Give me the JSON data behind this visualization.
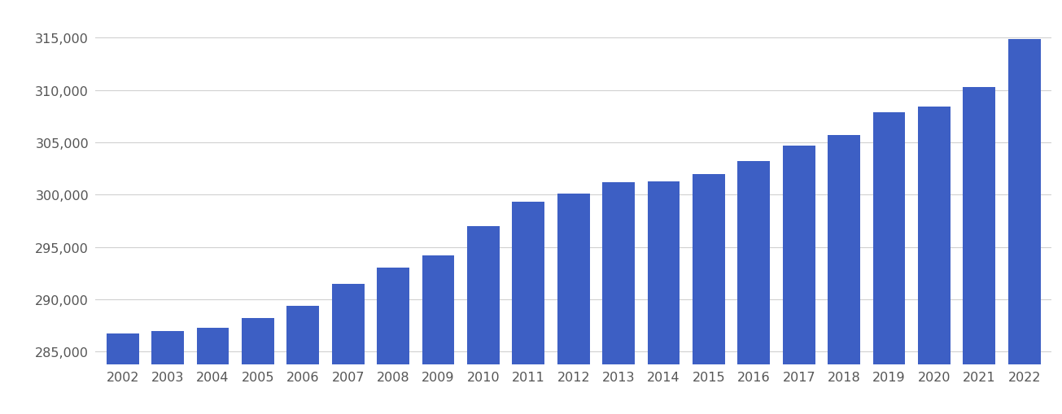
{
  "years": [
    2002,
    2003,
    2004,
    2005,
    2006,
    2007,
    2008,
    2009,
    2010,
    2011,
    2012,
    2013,
    2014,
    2015,
    2016,
    2017,
    2018,
    2019,
    2020,
    2021,
    2022
  ],
  "values": [
    286700,
    287000,
    287300,
    288200,
    289400,
    291500,
    293000,
    294200,
    297000,
    299300,
    300100,
    301200,
    301300,
    302000,
    303200,
    304700,
    305700,
    307900,
    308400,
    310300,
    314900
  ],
  "bar_color": "#3D5FC4",
  "ylim_min": 283800,
  "ylim_max": 317500,
  "yticks": [
    285000,
    290000,
    295000,
    300000,
    305000,
    310000,
    315000
  ],
  "background_color": "#ffffff",
  "grid_color": "#d0d0d0",
  "bar_width": 0.72,
  "figsize": [
    13.05,
    5.1
  ],
  "dpi": 100,
  "tick_fontsize": 11.5,
  "tick_color": "#555555"
}
